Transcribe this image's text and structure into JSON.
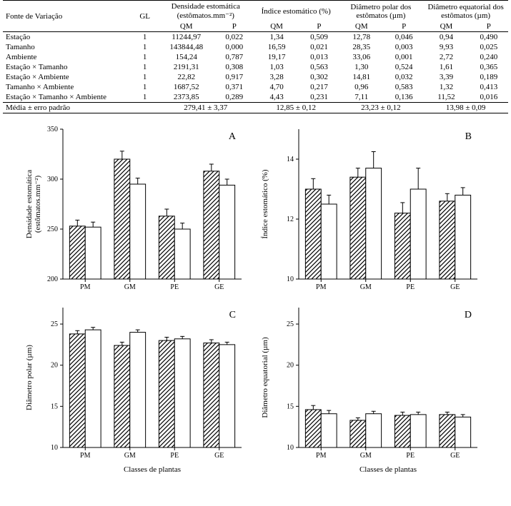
{
  "table": {
    "col_source": "Fonte de Variação",
    "col_gl": "GL",
    "groups": [
      {
        "title": "Densidade estomática (estômatos.mm⁻²)",
        "sub": [
          "QM",
          "P"
        ]
      },
      {
        "title": "Índice estomático (%)",
        "sub": [
          "QM",
          "P"
        ]
      },
      {
        "title": "Diâmetro polar dos estômatos (µm)",
        "sub": [
          "QM",
          "P"
        ]
      },
      {
        "title": "Diâmetro equatorial dos estômatos (µm)",
        "sub": [
          "QM",
          "P"
        ]
      }
    ],
    "rows": [
      {
        "src": "Estação",
        "gl": "1",
        "c": [
          "11244,97",
          "0,022",
          "1,34",
          "0,509",
          "12,78",
          "0,046",
          "0,94",
          "0,490"
        ]
      },
      {
        "src": "Tamanho",
        "gl": "1",
        "c": [
          "143844,48",
          "0,000",
          "16,59",
          "0,021",
          "28,35",
          "0,003",
          "9,93",
          "0,025"
        ]
      },
      {
        "src": "Ambiente",
        "gl": "1",
        "c": [
          "154,24",
          "0,787",
          "19,17",
          "0,013",
          "33,06",
          "0,001",
          "2,72",
          "0,240"
        ]
      },
      {
        "src": "Estação × Tamanho",
        "gl": "1",
        "c": [
          "2191,31",
          "0,308",
          "1,03",
          "0,563",
          "1,30",
          "0,524",
          "1,61",
          "0,365"
        ]
      },
      {
        "src": "Estação × Ambiente",
        "gl": "1",
        "c": [
          "22,82",
          "0,917",
          "3,28",
          "0,302",
          "14,81",
          "0,032",
          "3,39",
          "0,189"
        ]
      },
      {
        "src": "Tamanho × Ambiente",
        "gl": "1",
        "c": [
          "1687,52",
          "0,371",
          "4,70",
          "0,217",
          "0,96",
          "0,583",
          "1,32",
          "0,413"
        ]
      },
      {
        "src": "Estação × Tamanho × Ambiente",
        "gl": "1",
        "c": [
          "2373,85",
          "0,289",
          "4,43",
          "0,231",
          "7,11",
          "0,136",
          "11,52",
          "0,016"
        ]
      }
    ],
    "mean_label": "Média ± erro padrão",
    "means": [
      "279,41 ± 3,37",
      "12,85 ± 0,12",
      "23,23 ± 0,12",
      "13,98 ± 0,09"
    ]
  },
  "charts": {
    "x_categories": [
      "PM",
      "GM",
      "PE",
      "GE"
    ],
    "x_label": "Classes de plantas",
    "bar_width": 0.35,
    "hatch_color": "#000000",
    "background_color": "#ffffff",
    "axis_color": "#000000",
    "panelA": {
      "letter": "A",
      "ylabel": "Densidade estomática\n(estômatos.mm⁻²)",
      "ylim": [
        200,
        350
      ],
      "yticks": [
        200,
        250,
        300,
        350
      ],
      "series": [
        {
          "name": "hatched",
          "values": [
            253,
            320,
            263,
            308
          ],
          "errs": [
            6,
            8,
            7,
            7
          ]
        },
        {
          "name": "open",
          "values": [
            252,
            295,
            250,
            294
          ],
          "errs": [
            5,
            6,
            6,
            6
          ]
        }
      ]
    },
    "panelB": {
      "letter": "B",
      "ylabel": "Índice estomático (%)",
      "ylim": [
        10,
        15
      ],
      "yticks": [
        10,
        12,
        14
      ],
      "series": [
        {
          "name": "hatched",
          "values": [
            13.0,
            13.4,
            12.2,
            12.6
          ],
          "errs": [
            0.35,
            0.3,
            0.35,
            0.25
          ]
        },
        {
          "name": "open",
          "values": [
            12.5,
            13.7,
            13.0,
            12.8
          ],
          "errs": [
            0.3,
            0.55,
            0.7,
            0.25
          ]
        }
      ]
    },
    "panelC": {
      "letter": "C",
      "ylabel": "Diâmetro polar (µm)",
      "ylim": [
        10,
        27
      ],
      "yticks": [
        10,
        15,
        20,
        25
      ],
      "series": [
        {
          "name": "hatched",
          "values": [
            23.8,
            22.4,
            23.0,
            22.7
          ],
          "errs": [
            0.4,
            0.4,
            0.4,
            0.4
          ]
        },
        {
          "name": "open",
          "values": [
            24.3,
            24.0,
            23.2,
            22.5
          ],
          "errs": [
            0.3,
            0.3,
            0.3,
            0.3
          ]
        }
      ]
    },
    "panelD": {
      "letter": "D",
      "ylabel": "Diâmetro equatorial (µm)",
      "ylim": [
        10,
        27
      ],
      "yticks": [
        10,
        15,
        20,
        25
      ],
      "series": [
        {
          "name": "hatched",
          "values": [
            14.6,
            13.3,
            13.9,
            14.0
          ],
          "errs": [
            0.5,
            0.3,
            0.4,
            0.3
          ]
        },
        {
          "name": "open",
          "values": [
            14.1,
            14.1,
            14.0,
            13.7
          ],
          "errs": [
            0.4,
            0.3,
            0.3,
            0.3
          ]
        }
      ]
    }
  }
}
